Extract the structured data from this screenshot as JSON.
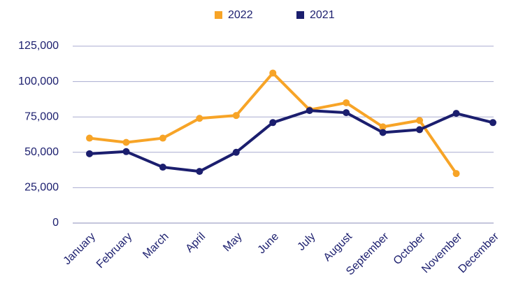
{
  "chart_data": {
    "type": "line",
    "categories": [
      "January",
      "February",
      "March",
      "April",
      "May",
      "June",
      "July",
      "August",
      "September",
      "October",
      "November",
      "December"
    ],
    "series": [
      {
        "name": "2022",
        "color": "#f7a427",
        "values": [
          60000,
          57000,
          60000,
          74000,
          76000,
          106000,
          80000,
          85000,
          68000,
          72500,
          35000,
          null
        ]
      },
      {
        "name": "2021",
        "color": "#1b1e6e",
        "values": [
          49000,
          50500,
          39500,
          36500,
          50000,
          71000,
          79500,
          78000,
          64000,
          66000,
          77500,
          71000
        ]
      }
    ],
    "ylim": [
      0,
      125000
    ],
    "yticks": [
      0,
      {
        "value": 25000,
        "label": "25,000"
      },
      {
        "value": 50000,
        "label": "50,000"
      },
      {
        "value": 75000,
        "label": "75,000"
      },
      {
        "value": 100000,
        "label": "100,000"
      },
      {
        "value": 125000,
        "label": "125,000"
      }
    ],
    "grid": true,
    "legend": "top"
  }
}
